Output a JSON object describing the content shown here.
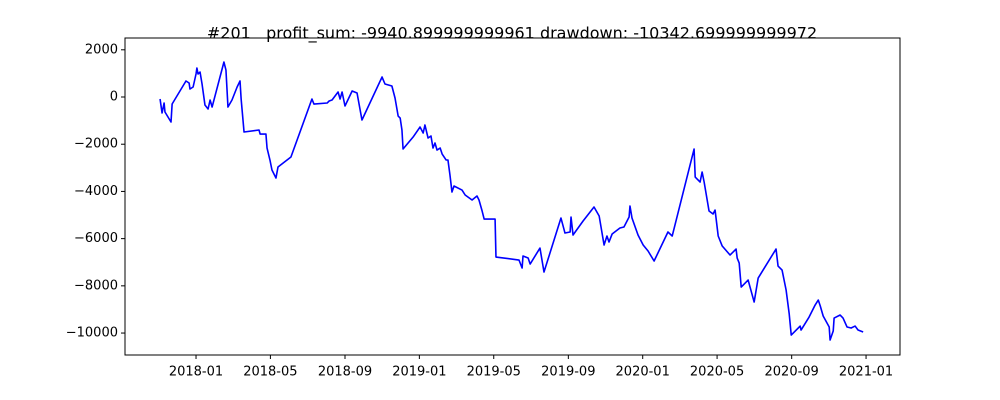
{
  "chart_data": {
    "type": "line",
    "title": "#201   profit_sum: -9940.899999999961 drawdown: -10342.699999999972",
    "x": [
      2017.839,
      2017.848,
      2017.857,
      2017.861,
      2017.888,
      2017.893,
      2017.955,
      2017.969,
      2017.973,
      2017.987,
      2018.0,
      2018.004,
      2018.009,
      2018.018,
      2018.027,
      2018.04,
      2018.054,
      2018.063,
      2018.072,
      2018.125,
      2018.134,
      2018.143,
      2018.161,
      2018.184,
      2018.197,
      2018.202,
      2018.215,
      2018.282,
      2018.287,
      2018.313,
      2018.318,
      2018.331,
      2018.34,
      2018.358,
      2018.367,
      2018.425,
      2018.519,
      2018.528,
      2018.587,
      2018.596,
      2018.609,
      2018.636,
      2018.645,
      2018.654,
      2018.667,
      2018.699,
      2018.721,
      2018.743,
      2018.833,
      2018.846,
      2018.877,
      2018.891,
      2018.905,
      2018.914,
      2018.922,
      2018.927,
      2018.972,
      2019.003,
      2019.017,
      2019.025,
      2019.039,
      2019.052,
      2019.061,
      2019.07,
      2019.079,
      2019.093,
      2019.102,
      2019.12,
      2019.128,
      2019.137,
      2019.146,
      2019.155,
      2019.191,
      2019.205,
      2019.236,
      2019.258,
      2019.267,
      2019.281,
      2019.29,
      2019.339,
      2019.343,
      2019.446,
      2019.46,
      2019.464,
      2019.487,
      2019.496,
      2019.54,
      2019.558,
      2019.634,
      2019.652,
      2019.675,
      2019.679,
      2019.688,
      2019.733,
      2019.782,
      2019.805,
      2019.827,
      2019.84,
      2019.849,
      2019.863,
      2019.898,
      2019.916,
      2019.939,
      2019.943,
      2019.952,
      2019.979,
      2020.002,
      2020.024,
      2020.051,
      2020.113,
      2020.132,
      2020.23,
      2020.235,
      2020.257,
      2020.266,
      2020.275,
      2020.297,
      2020.315,
      2020.324,
      2020.338,
      2020.356,
      2020.391,
      2020.418,
      2020.423,
      2020.432,
      2020.441,
      2020.472,
      2020.499,
      2020.517,
      2020.597,
      2020.606,
      2020.624,
      2020.642,
      2020.656,
      2020.665,
      2020.705,
      2020.709,
      2020.745,
      2020.772,
      2020.786,
      2020.795,
      2020.808,
      2020.835,
      2020.839,
      2020.853,
      2020.857,
      2020.884,
      2020.897,
      2020.915,
      2020.933,
      2020.951,
      2020.964,
      2020.987
    ],
    "series": [
      {
        "color": "#0000ff",
        "values": [
          -85,
          -678,
          -254,
          -636,
          -1059,
          -297,
          678,
          593,
          339,
          424,
          975,
          1229,
          975,
          1059,
          551,
          -339,
          -508,
          -127,
          -424,
          1483,
          1144,
          -424,
          -127,
          424,
          678,
          -85,
          -1483,
          -1398,
          -1568,
          -1568,
          -2161,
          -2669,
          -3093,
          -3432,
          -2966,
          -2542,
          -85,
          -297,
          -254,
          -169,
          -127,
          212,
          -85,
          212,
          -381,
          254,
          169,
          -975,
          847,
          551,
          466,
          -42,
          -805,
          -890,
          -1398,
          -2203,
          -1695,
          -1271,
          -1525,
          -1186,
          -1737,
          -1652,
          -2161,
          -1949,
          -2246,
          -2161,
          -2415,
          -2669,
          -2669,
          -3305,
          -4025,
          -3771,
          -3941,
          -4152,
          -4364,
          -4195,
          -4364,
          -4830,
          -5169,
          -5169,
          -6779,
          -6906,
          -7245,
          -6737,
          -6822,
          -7076,
          -6398,
          -7415,
          -5127,
          -5762,
          -5720,
          -5084,
          -5847,
          -5254,
          -4661,
          -5042,
          -6271,
          -5889,
          -6144,
          -5805,
          -5550,
          -5508,
          -5084,
          -4618,
          -5127,
          -5847,
          -6271,
          -6525,
          -6948,
          -5720,
          -5889,
          -2203,
          -3390,
          -3601,
          -3178,
          -3601,
          -4830,
          -4957,
          -4788,
          -5889,
          -6313,
          -6694,
          -6440,
          -6822,
          -7033,
          -8050,
          -7754,
          -8686,
          -7669,
          -6440,
          -7160,
          -7330,
          -8177,
          -9194,
          -10084,
          -9703,
          -9872,
          -9321,
          -8813,
          -8601,
          -8855,
          -9279,
          -9745,
          -10296,
          -9914,
          -9364,
          -9236,
          -9364,
          -9745,
          -9787,
          -9703,
          -9872,
          -9957
        ]
      }
    ],
    "xlim": [
      2017.682,
      2021.152
    ],
    "ylim": [
      -10930,
      2500
    ],
    "xticks": [
      {
        "value": 2018.0,
        "label": "2018-01"
      },
      {
        "value": 2018.333,
        "label": "2018-05"
      },
      {
        "value": 2018.667,
        "label": "2018-09"
      },
      {
        "value": 2019.0,
        "label": "2019-01"
      },
      {
        "value": 2019.333,
        "label": "2019-05"
      },
      {
        "value": 2019.667,
        "label": "2019-09"
      },
      {
        "value": 2020.0,
        "label": "2020-01"
      },
      {
        "value": 2020.333,
        "label": "2020-05"
      },
      {
        "value": 2020.667,
        "label": "2020-09"
      },
      {
        "value": 2021.0,
        "label": "2021-01"
      }
    ],
    "yticks": [
      2000,
      0,
      {
        "value": -2000,
        "label": "−2000"
      },
      {
        "value": -4000,
        "label": "−4000"
      },
      {
        "value": -6000,
        "label": "−6000"
      },
      {
        "value": -8000,
        "label": "−8000"
      },
      {
        "value": -10000,
        "label": "−10000"
      }
    ],
    "grid": false
  }
}
